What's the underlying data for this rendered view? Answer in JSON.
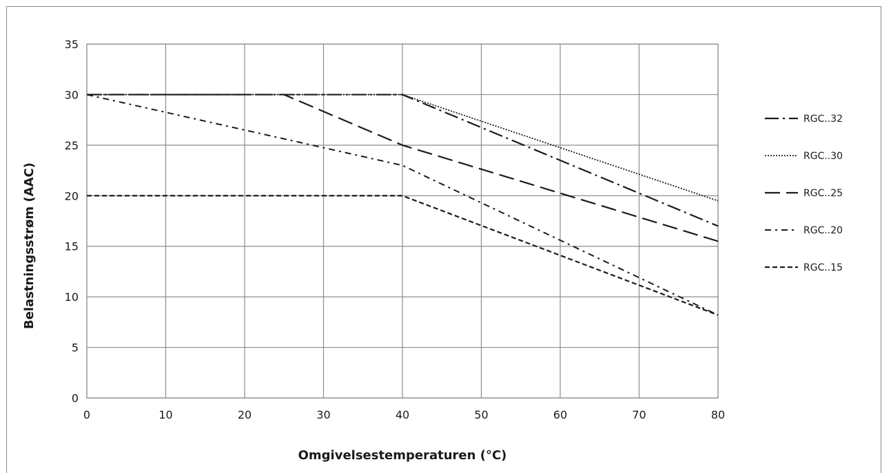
{
  "chart_data": {
    "type": "line",
    "xlabel": "Omgivelsestemperaturen (°C)",
    "ylabel": "Belastningsstrøm (AAC)",
    "xlim": [
      0,
      80
    ],
    "ylim": [
      0,
      35
    ],
    "xticks": [
      0,
      10,
      20,
      30,
      40,
      50,
      60,
      70,
      80
    ],
    "yticks": [
      0,
      5,
      10,
      15,
      20,
      25,
      30,
      35
    ],
    "grid": true,
    "legend_position": "right",
    "series": [
      {
        "name": "RGC..32",
        "style": "long-dash-dot",
        "x": [
          0,
          40,
          80
        ],
        "y": [
          30,
          30,
          17
        ]
      },
      {
        "name": "RGC..30",
        "style": "dotted",
        "x": [
          0,
          40,
          80
        ],
        "y": [
          30,
          30,
          19.5
        ]
      },
      {
        "name": "RGC..25",
        "style": "long-dash",
        "x": [
          0,
          25,
          40,
          80
        ],
        "y": [
          30,
          30,
          25,
          15.5
        ]
      },
      {
        "name": "RGC..20",
        "style": "dash-dot",
        "x": [
          0,
          40,
          80
        ],
        "y": [
          30,
          23,
          8.2
        ]
      },
      {
        "name": "RGC..15",
        "style": "short-dash",
        "x": [
          0,
          40,
          80
        ],
        "y": [
          20,
          20,
          8.2
        ]
      }
    ]
  }
}
